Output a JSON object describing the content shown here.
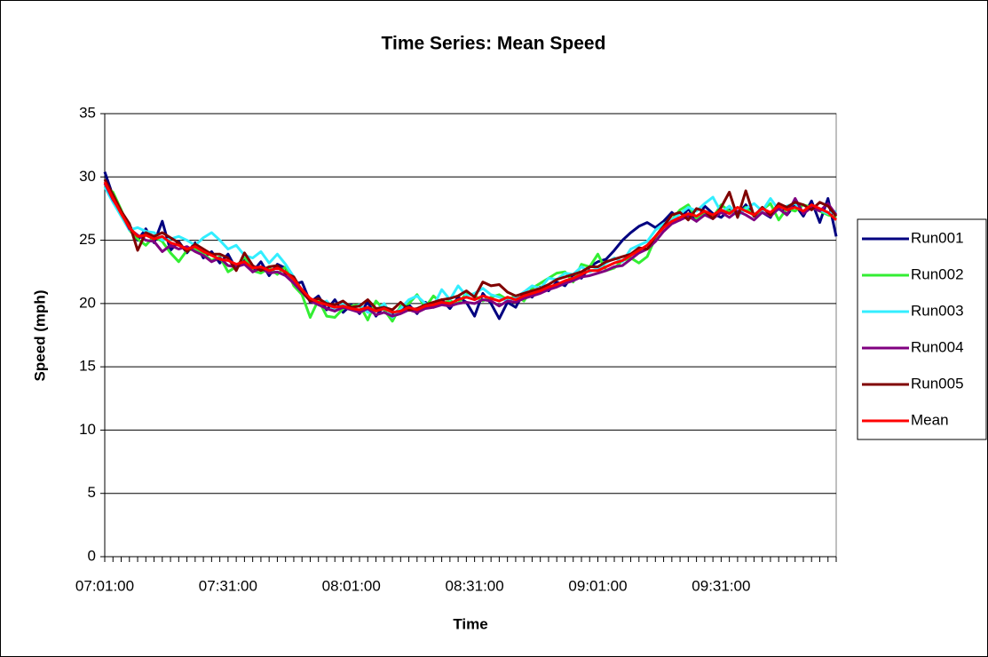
{
  "chart_data": {
    "type": "line",
    "title": "Time Series: Mean Speed",
    "x_label": "Time",
    "y_label": "Speed (mph)",
    "categories": [
      "07:01:00",
      null,
      null,
      null,
      null,
      null,
      null,
      null,
      null,
      null,
      null,
      null,
      null,
      null,
      null,
      "07:31:00",
      null,
      null,
      null,
      null,
      null,
      null,
      null,
      null,
      null,
      null,
      null,
      null,
      null,
      null,
      "08:01:00",
      null,
      null,
      null,
      null,
      null,
      null,
      null,
      null,
      null,
      null,
      null,
      null,
      null,
      null,
      "08:31:00",
      null,
      null,
      null,
      null,
      null,
      null,
      null,
      null,
      null,
      null,
      null,
      null,
      null,
      null,
      "09:01:00",
      null,
      null,
      null,
      null,
      null,
      null,
      null,
      null,
      null,
      null,
      null,
      null,
      null,
      null,
      "09:31:00",
      null,
      null,
      null,
      null,
      null,
      null,
      null,
      null,
      null,
      null,
      null,
      null,
      null,
      null
    ],
    "ylim": [
      0,
      35
    ],
    "yticks": [
      0,
      5,
      10,
      15,
      20,
      25,
      30,
      35
    ],
    "grid": true,
    "legend": "right",
    "series": [
      {
        "name": "Run001",
        "color": "#000080",
        "values": [
          30.4,
          28.5,
          27.0,
          26.2,
          25.0,
          25.9,
          24.8,
          26.5,
          24.2,
          24.9,
          24.0,
          24.8,
          23.6,
          24.1,
          23.2,
          23.9,
          22.7,
          23.6,
          22.5,
          23.3,
          22.2,
          23.1,
          22.8,
          21.5,
          21.7,
          20.1,
          20.6,
          19.5,
          20.3,
          19.3,
          19.9,
          19.2,
          20.1,
          19.0,
          19.8,
          19.1,
          19.6,
          19.9,
          19.2,
          20.1,
          19.7,
          20.3,
          19.6,
          20.5,
          20.1,
          19.0,
          20.8,
          20.0,
          18.8,
          20.1,
          19.7,
          20.9,
          20.5,
          21.3,
          21.0,
          21.7,
          21.4,
          22.3,
          22.0,
          22.9,
          23.3,
          23.5,
          24.2,
          25.0,
          25.6,
          26.1,
          26.4,
          26.0,
          26.5,
          27.2,
          26.6,
          27.5,
          26.5,
          27.7,
          27.1,
          26.8,
          27.4,
          27.0,
          27.8,
          26.9,
          27.2,
          26.8,
          27.9,
          27.0,
          27.8,
          26.9,
          28.1,
          26.4,
          28.3,
          25.3
        ]
      },
      {
        "name": "Run002",
        "color": "#33ee33",
        "values": [
          29.3,
          28.8,
          27.4,
          25.8,
          25.1,
          24.6,
          25.3,
          24.9,
          24.0,
          23.3,
          24.2,
          24.3,
          23.9,
          23.4,
          23.7,
          22.5,
          22.9,
          23.7,
          22.6,
          22.4,
          22.8,
          22.3,
          22.9,
          21.4,
          20.7,
          18.9,
          20.3,
          19.0,
          18.9,
          19.6,
          19.8,
          19.9,
          18.7,
          20.2,
          19.5,
          18.6,
          19.8,
          20.0,
          20.7,
          19.7,
          20.6,
          20.0,
          20.2,
          20.0,
          20.8,
          20.6,
          20.2,
          20.5,
          20.7,
          20.3,
          20.6,
          20.2,
          21.2,
          21.6,
          22.0,
          22.4,
          22.5,
          21.7,
          23.1,
          22.9,
          23.9,
          22.6,
          22.8,
          23.4,
          23.6,
          23.2,
          23.7,
          25.2,
          26.2,
          26.6,
          27.4,
          27.8,
          26.7,
          27.2,
          26.8,
          27.8,
          27.3,
          27.0,
          27.6,
          26.9,
          27.4,
          27.9,
          26.6,
          27.5,
          27.3,
          27.8,
          27.6,
          27.3,
          27.0,
          26.8
        ]
      },
      {
        "name": "Run003",
        "color": "#33eeff",
        "values": [
          29.2,
          28.0,
          26.9,
          25.8,
          26.0,
          25.7,
          25.6,
          25.0,
          25.1,
          25.3,
          25.0,
          24.6,
          25.2,
          25.6,
          25.0,
          24.3,
          24.6,
          23.8,
          23.6,
          24.1,
          23.2,
          23.9,
          23.1,
          22.1,
          21.0,
          20.3,
          19.9,
          20.2,
          19.4,
          20.0,
          19.5,
          19.9,
          19.3,
          19.4,
          20.0,
          18.9,
          19.6,
          20.3,
          20.6,
          20.0,
          19.8,
          21.1,
          20.3,
          21.4,
          20.6,
          20.8,
          21.2,
          20.7,
          20.5,
          20.2,
          20.5,
          20.9,
          21.4,
          21.2,
          22.0,
          21.9,
          22.4,
          22.3,
          22.9,
          22.5,
          22.8,
          23.2,
          23.6,
          23.3,
          24.3,
          24.6,
          24.9,
          25.8,
          26.3,
          26.6,
          27.1,
          27.6,
          27.3,
          27.9,
          28.4,
          27.2,
          27.7,
          26.9,
          27.5,
          27.9,
          27.3,
          28.3,
          27.4,
          27.7,
          27.9,
          27.2,
          27.6,
          27.4,
          27.1,
          27.3
        ]
      },
      {
        "name": "Run004",
        "color": "#800080",
        "values": [
          29.5,
          28.2,
          27.2,
          25.9,
          25.4,
          25.0,
          24.9,
          24.1,
          24.6,
          24.3,
          24.5,
          24.1,
          23.8,
          23.3,
          23.6,
          23.0,
          22.9,
          23.1,
          22.5,
          22.8,
          22.4,
          22.5,
          22.2,
          21.6,
          20.9,
          20.2,
          19.9,
          19.6,
          19.4,
          19.7,
          19.5,
          19.3,
          19.6,
          19.1,
          19.3,
          19.0,
          19.2,
          19.5,
          19.3,
          19.6,
          19.7,
          19.9,
          19.8,
          20.0,
          20.1,
          20.0,
          20.3,
          20.2,
          19.8,
          20.2,
          20.1,
          20.4,
          20.6,
          20.8,
          21.1,
          21.3,
          21.6,
          21.8,
          22.1,
          22.2,
          22.4,
          22.6,
          22.9,
          23.0,
          23.5,
          24.0,
          24.3,
          24.9,
          25.7,
          26.3,
          26.6,
          26.9,
          26.5,
          27.0,
          26.7,
          27.2,
          26.8,
          27.3,
          27.0,
          26.6,
          27.2,
          26.9,
          27.5,
          27.0,
          28.3,
          27.1,
          27.6,
          27.3,
          27.9,
          27.0
        ]
      },
      {
        "name": "Run005",
        "color": "#800000",
        "values": [
          29.8,
          28.6,
          27.3,
          26.3,
          24.2,
          25.6,
          25.3,
          25.6,
          25.2,
          24.8,
          24.1,
          24.7,
          24.3,
          23.9,
          23.9,
          23.6,
          22.6,
          24.0,
          23.0,
          22.6,
          22.9,
          23.0,
          22.4,
          22.1,
          21.0,
          20.2,
          20.4,
          20.0,
          19.9,
          20.2,
          19.7,
          19.8,
          20.3,
          19.6,
          19.7,
          19.5,
          20.1,
          19.5,
          19.6,
          19.9,
          20.1,
          20.3,
          20.4,
          20.6,
          21.0,
          20.5,
          21.7,
          21.4,
          21.5,
          20.9,
          20.6,
          20.8,
          21.0,
          21.2,
          21.5,
          21.9,
          22.1,
          22.3,
          22.5,
          22.9,
          22.9,
          23.3,
          23.5,
          23.7,
          23.9,
          24.4,
          24.3,
          25.3,
          26.1,
          27.0,
          27.2,
          26.6,
          27.5,
          27.3,
          26.7,
          27.6,
          28.8,
          26.8,
          28.9,
          26.9,
          27.6,
          27.0,
          27.9,
          27.6,
          28.0,
          27.8,
          27.4,
          28.0,
          27.7,
          26.9
        ]
      },
      {
        "name": "Mean",
        "color": "#ff0000",
        "values": [
          29.6,
          28.3,
          27.1,
          26.0,
          25.3,
          25.4,
          25.1,
          25.3,
          24.8,
          24.6,
          24.3,
          24.5,
          24.1,
          23.8,
          23.5,
          23.4,
          23.1,
          23.3,
          22.8,
          22.9,
          22.6,
          22.8,
          22.5,
          21.9,
          21.1,
          20.4,
          20.1,
          19.9,
          19.7,
          19.8,
          19.6,
          19.5,
          19.7,
          19.4,
          19.6,
          19.3,
          19.4,
          19.7,
          19.5,
          19.8,
          19.9,
          20.1,
          20.0,
          20.3,
          20.5,
          20.3,
          20.6,
          20.4,
          20.2,
          20.5,
          20.3,
          20.6,
          20.8,
          21.0,
          21.3,
          21.5,
          21.8,
          22.0,
          22.3,
          22.6,
          22.6,
          22.9,
          23.2,
          23.4,
          23.8,
          24.2,
          24.6,
          25.3,
          26.0,
          26.5,
          26.8,
          27.1,
          26.9,
          27.3,
          27.0,
          27.4,
          27.1,
          27.6,
          27.3,
          27.0,
          27.5,
          27.2,
          27.7,
          27.4,
          27.6,
          27.3,
          27.8,
          27.5,
          27.2,
          26.6
        ]
      }
    ]
  }
}
